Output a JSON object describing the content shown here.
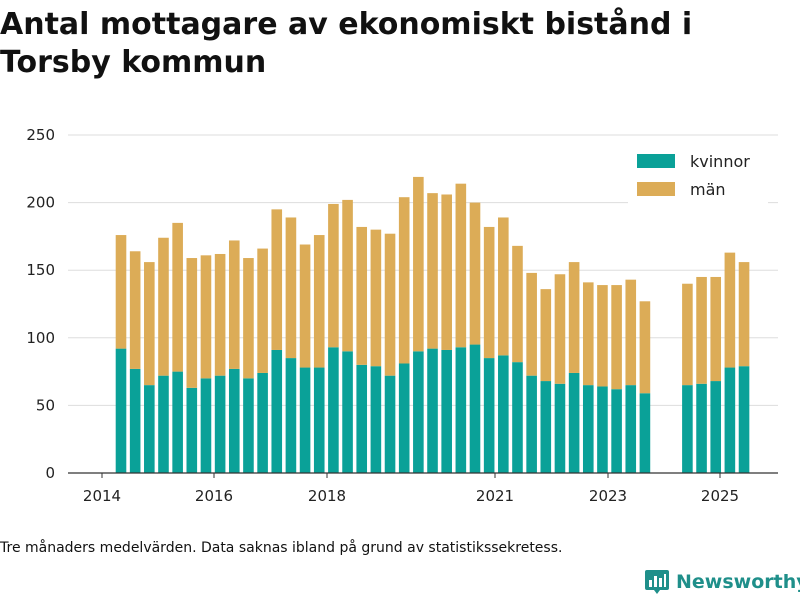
{
  "chart_data": {
    "type": "bar",
    "stacked": true,
    "title": "Antal mottagare av ekonomiskt bistånd i Torsby kommun",
    "xlabel": "",
    "ylabel": "",
    "ylim": [
      0,
      250
    ],
    "yticks": [
      0,
      50,
      100,
      150,
      200,
      250
    ],
    "xticks": [
      "2014",
      "2016",
      "2018",
      "2021",
      "2023",
      "2025"
    ],
    "grid": true,
    "legend_position": "top-right",
    "colors": {
      "kvinnor": "#0aa198",
      "män": "#dcac57"
    },
    "series": [
      {
        "name": "kvinnor",
        "values": [
          92,
          77,
          65,
          72,
          75,
          63,
          70,
          72,
          77,
          70,
          74,
          91,
          85,
          78,
          78,
          93,
          90,
          80,
          79,
          72,
          81,
          90,
          92,
          91,
          93,
          95,
          85,
          87,
          82,
          72,
          68,
          66,
          74,
          65,
          64,
          62,
          65,
          59,
          null,
          null,
          65,
          66,
          68,
          78,
          79
        ]
      },
      {
        "name": "män",
        "values": [
          84,
          87,
          91,
          102,
          110,
          96,
          91,
          90,
          95,
          89,
          92,
          104,
          104,
          91,
          98,
          106,
          112,
          102,
          101,
          105,
          123,
          129,
          115,
          115,
          121,
          105,
          97,
          102,
          86,
          76,
          68,
          81,
          82,
          76,
          75,
          77,
          78,
          68,
          null,
          null,
          75,
          79,
          77,
          85,
          77
        ]
      }
    ]
  },
  "footnote": "Tre månaders medelvärden. Data saknas ibland på grund av statistikssekretess.",
  "brand": {
    "name": "Newsworthy",
    "icon": "bar-chart-logo-icon"
  }
}
